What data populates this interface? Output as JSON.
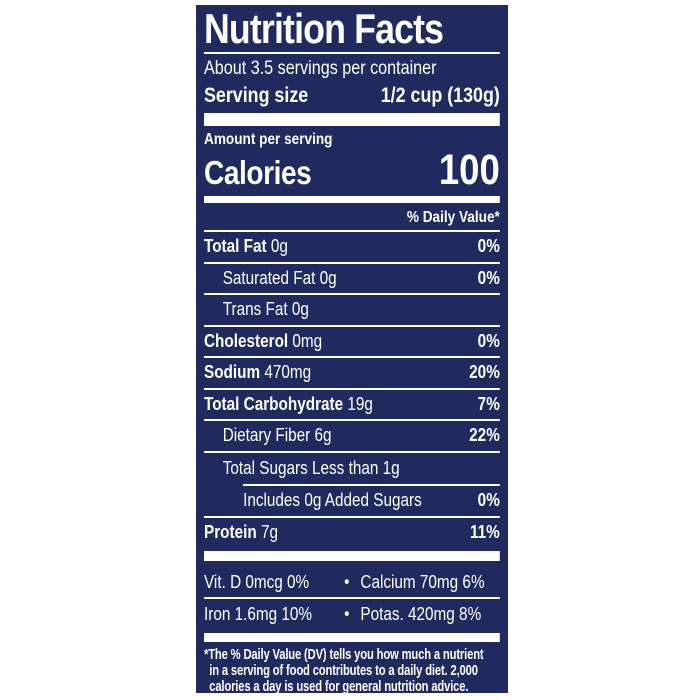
{
  "label": {
    "title": "Nutrition Facts",
    "servings_per_container": "About 3.5 servings per container",
    "serving_size": {
      "label": "Serving size",
      "value": "1/2 cup (130g)"
    },
    "amount_per_serving": "Amount per serving",
    "calories": {
      "label": "Calories",
      "value": "100"
    },
    "daily_value_header": "% Daily Value*",
    "nutrients": [
      {
        "name": "Total Fat",
        "amount": "0g",
        "dv": "0%"
      },
      {
        "name": "Saturated Fat",
        "amount": "0g",
        "dv": "0%"
      },
      {
        "name": "Trans Fat",
        "amount": "0g",
        "dv": ""
      },
      {
        "name": "Cholesterol",
        "amount": "0mg",
        "dv": "0%"
      },
      {
        "name": "Sodium",
        "amount": "470mg",
        "dv": "20%"
      },
      {
        "name": "Total Carbohydrate",
        "amount": "19g",
        "dv": "7%"
      },
      {
        "name": "Dietary Fiber",
        "amount": "6g",
        "dv": "22%"
      },
      {
        "name": "Total Sugars",
        "amount": "Less than 1g",
        "dv": ""
      },
      {
        "name": "Includes 0g Added Sugars",
        "amount": "",
        "dv": "0%"
      },
      {
        "name": "Protein",
        "amount": "7g",
        "dv": "11%"
      }
    ],
    "micronutrients": [
      {
        "left": "Vit. D 0mcg 0%",
        "bullet": "•",
        "right": "Calcium 70mg 6%"
      },
      {
        "left": "Iron 1.6mg 10%",
        "bullet": "•",
        "right": "Potas. 420mg 8%"
      }
    ],
    "footnote_lines": [
      "*The % Daily Value (DV) tells you how much a nutrient",
      "in a serving of food contributes to a daily diet. 2,000",
      "calories a day is used for general nutrition advice."
    ],
    "colors": {
      "panel_bg": "#202a5e",
      "text": "#ffffff",
      "page_bg": "#ffffff"
    }
  }
}
